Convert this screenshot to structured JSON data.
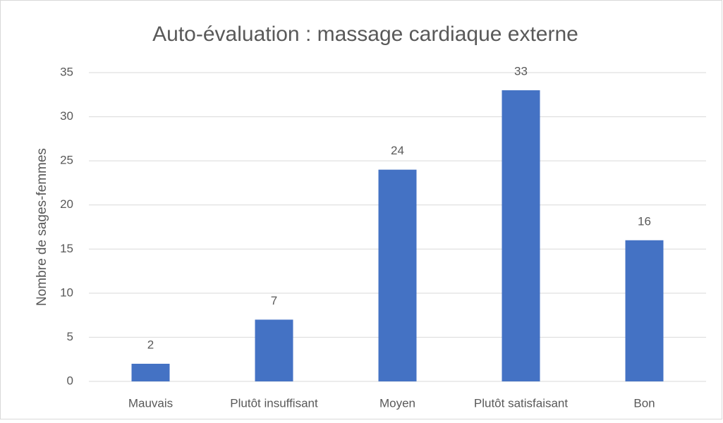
{
  "chart_data": {
    "type": "bar",
    "title": "Auto-évaluation : massage cardiaque externe",
    "y_label": "Nombre de sages-femmes",
    "categories": [
      "Mauvais",
      "Plutôt insuffisant",
      "Moyen",
      "Plutôt satisfaisant",
      "Bon"
    ],
    "values": [
      2,
      7,
      24,
      33,
      16
    ],
    "color": "#4472c4",
    "ylim": [
      0,
      35
    ],
    "yticks": [
      0,
      5,
      10,
      15,
      20,
      25,
      30,
      35
    ],
    "grid": true,
    "data_labels": true
  }
}
